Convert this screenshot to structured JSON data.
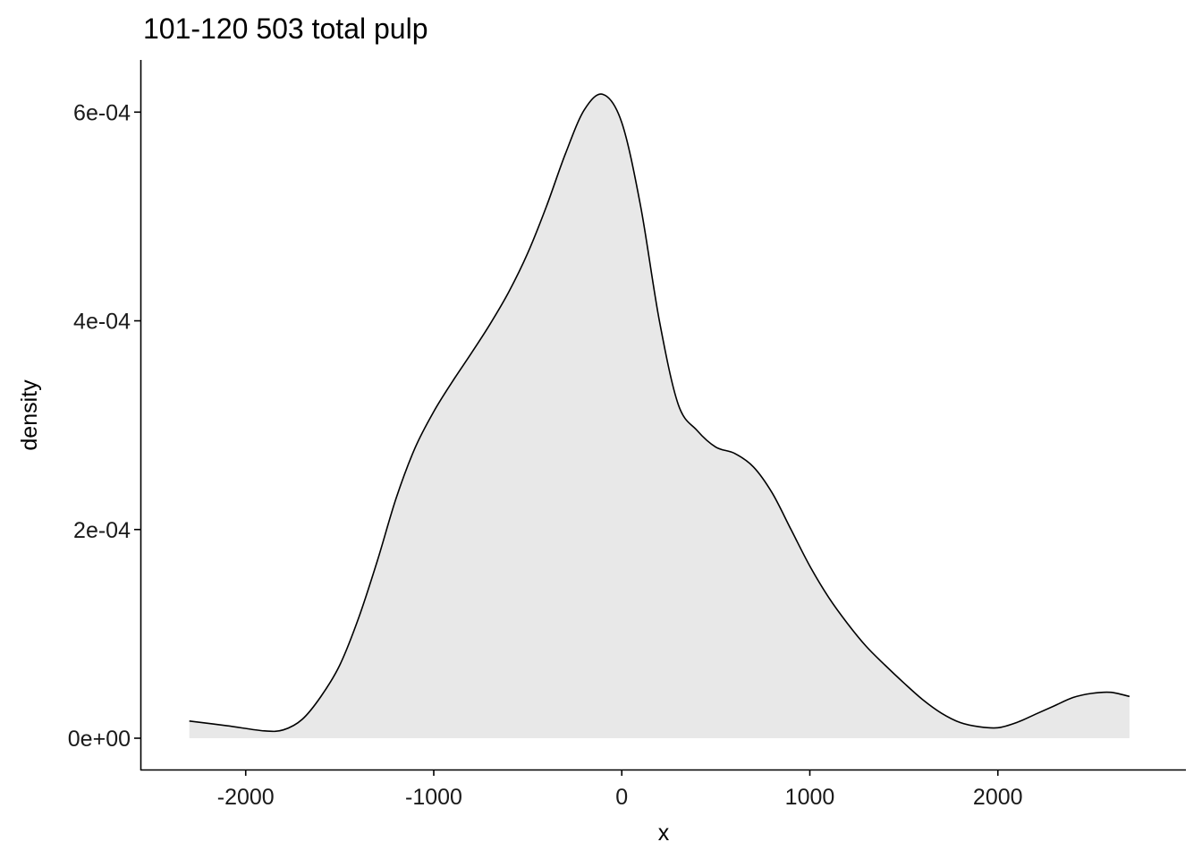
{
  "chart_data": {
    "type": "area",
    "title": "101-120 503 total pulp",
    "xlabel": "x",
    "ylabel": "density",
    "xlim": [
      -2560,
      3000
    ],
    "ylim": [
      -3e-05,
      0.00065
    ],
    "xticks": [
      -2000,
      -1000,
      0,
      1000,
      2000
    ],
    "xtick_labels": [
      "-2000",
      "-1000",
      "0",
      "1000",
      "2000"
    ],
    "yticks": [
      0,
      0.0002,
      0.0004,
      0.0006
    ],
    "ytick_labels": [
      "0e+00",
      "2e-04",
      "4e-04",
      "6e-04"
    ],
    "grid": false,
    "legend": "none",
    "colors": {
      "fill": "#e8e8e8",
      "line": "#000000",
      "axis": "#000000"
    },
    "series": [
      {
        "x": [
          -2300,
          -2100,
          -1900,
          -1800,
          -1700,
          -1600,
          -1500,
          -1400,
          -1300,
          -1200,
          -1100,
          -1000,
          -900,
          -800,
          -700,
          -600,
          -500,
          -400,
          -300,
          -200,
          -100,
          0,
          100,
          200,
          300,
          400,
          500,
          600,
          700,
          800,
          900,
          1000,
          1100,
          1200,
          1300,
          1400,
          1500,
          1600,
          1700,
          1800,
          1900,
          2000,
          2100,
          2200,
          2300,
          2400,
          2500,
          2600,
          2700
        ],
        "y": [
          1.65e-05,
          1.2e-05,
          7e-06,
          8e-06,
          1.8e-05,
          4e-05,
          7e-05,
          0.000115,
          0.00017,
          0.00023,
          0.000278,
          0.000313,
          0.000342,
          0.000369,
          0.000397,
          0.000428,
          0.000465,
          0.00051,
          0.00056,
          0.000602,
          0.000617,
          0.00059,
          0.00051,
          0.0004,
          0.00032,
          0.000295,
          0.000279,
          0.000273,
          0.00026,
          0.000235,
          0.0002,
          0.000165,
          0.000135,
          0.00011,
          8.8e-05,
          7e-05,
          5.3e-05,
          3.7e-05,
          2.4e-05,
          1.5e-05,
          1.1e-05,
          1e-05,
          1.5e-05,
          2.3e-05,
          3.1e-05,
          3.9e-05,
          4.3e-05,
          4.4e-05,
          4e-05
        ]
      }
    ]
  }
}
